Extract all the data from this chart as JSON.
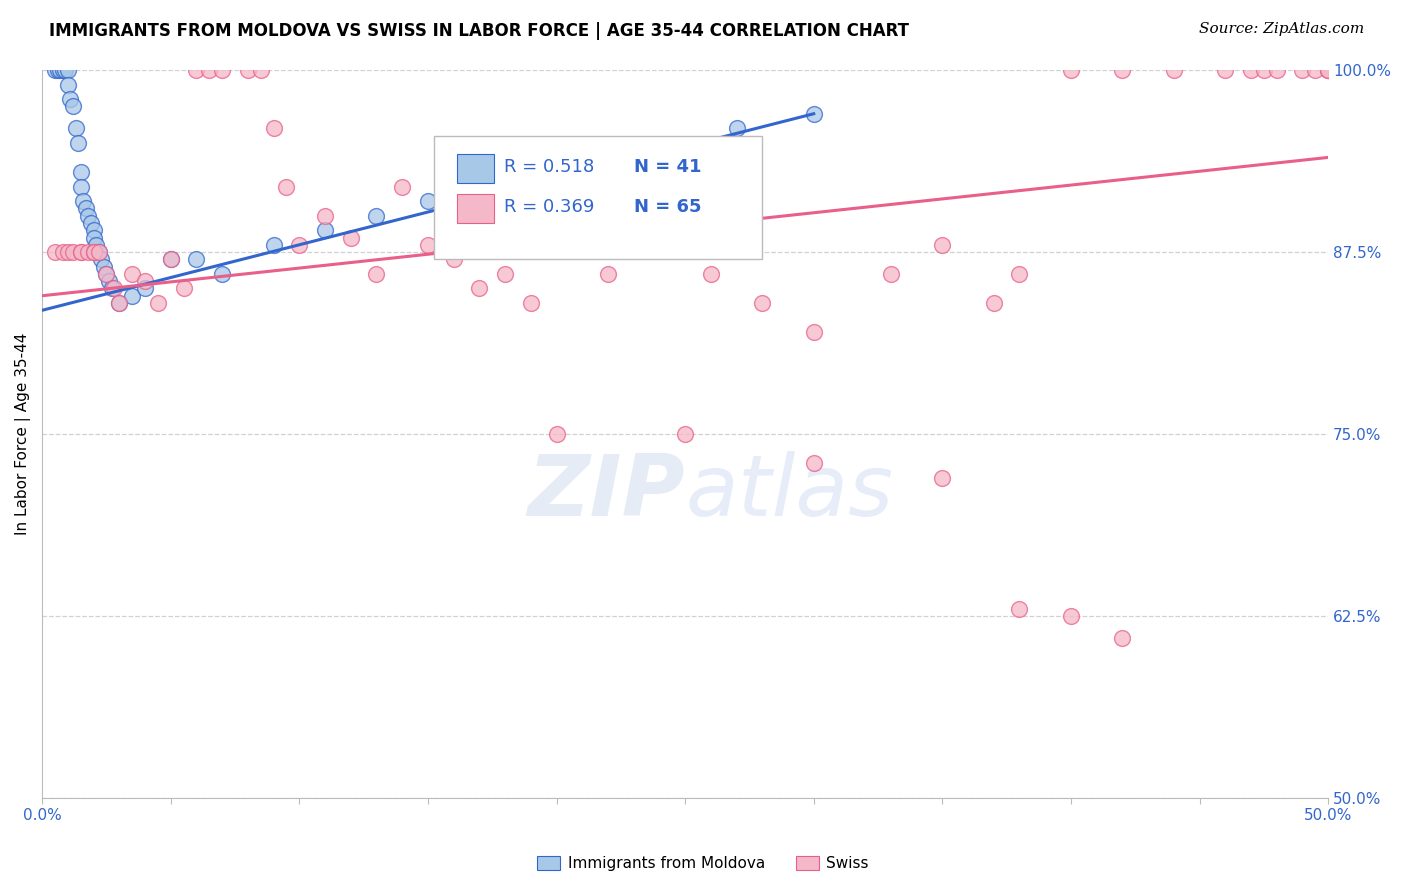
{
  "title": "IMMIGRANTS FROM MOLDOVA VS SWISS IN LABOR FORCE | AGE 35-44 CORRELATION CHART",
  "source": "Source: ZipAtlas.com",
  "ylabel_label": "In Labor Force | Age 35-44",
  "legend_blue_label": "Immigrants from Moldova",
  "legend_pink_label": "Swiss",
  "legend_blue_r": "R = 0.518",
  "legend_blue_n": "N = 41",
  "legend_pink_r": "R = 0.369",
  "legend_pink_n": "N = 65",
  "watermark_zip": "ZIP",
  "watermark_atlas": "atlas",
  "blue_color": "#a8c8e8",
  "pink_color": "#f4b8c8",
  "blue_line_color": "#3366cc",
  "pink_line_color": "#e8608a",
  "xmin": 0.0,
  "xmax": 50.0,
  "ymin": 50.0,
  "ymax": 100.0,
  "blue_dots_x": [
    0.5,
    0.6,
    0.7,
    0.8,
    0.9,
    1.0,
    1.0,
    1.1,
    1.2,
    1.3,
    1.4,
    1.5,
    1.5,
    1.6,
    1.7,
    1.8,
    1.9,
    2.0,
    2.0,
    2.1,
    2.2,
    2.3,
    2.4,
    2.5,
    2.6,
    2.7,
    3.0,
    3.5,
    4.0,
    5.0,
    6.0,
    7.0,
    9.0,
    11.0,
    13.0,
    15.0,
    17.0,
    20.0,
    23.0,
    27.0,
    30.0
  ],
  "blue_dots_y": [
    100.0,
    100.0,
    100.0,
    100.0,
    100.0,
    100.0,
    99.0,
    98.0,
    97.5,
    96.0,
    95.0,
    93.0,
    92.0,
    91.0,
    90.5,
    90.0,
    89.5,
    89.0,
    88.5,
    88.0,
    87.5,
    87.0,
    86.5,
    86.0,
    85.5,
    85.0,
    84.0,
    84.5,
    85.0,
    87.0,
    87.0,
    86.0,
    88.0,
    89.0,
    90.0,
    91.0,
    92.0,
    93.0,
    94.5,
    96.0,
    97.0
  ],
  "pink_dots_x": [
    0.5,
    0.8,
    1.0,
    1.2,
    1.5,
    1.5,
    1.8,
    2.0,
    2.0,
    2.2,
    2.5,
    2.8,
    3.0,
    3.5,
    4.0,
    4.5,
    5.0,
    5.5,
    6.0,
    6.5,
    7.0,
    8.0,
    8.5,
    9.0,
    9.5,
    10.0,
    11.0,
    12.0,
    13.0,
    14.0,
    15.0,
    16.0,
    17.0,
    18.0,
    19.0,
    20.0,
    22.0,
    24.0,
    25.0,
    26.0,
    28.0,
    30.0,
    33.0,
    35.0,
    37.0,
    38.0,
    40.0,
    42.0,
    44.0,
    46.0,
    47.0,
    47.5,
    48.0,
    49.0,
    49.5,
    50.0,
    50.0,
    50.0,
    20.0,
    25.0,
    30.0,
    35.0,
    40.0,
    38.0,
    42.0
  ],
  "pink_dots_y": [
    87.5,
    87.5,
    87.5,
    87.5,
    87.5,
    87.5,
    87.5,
    87.5,
    87.5,
    87.5,
    86.0,
    85.0,
    84.0,
    86.0,
    85.5,
    84.0,
    87.0,
    85.0,
    100.0,
    100.0,
    100.0,
    100.0,
    100.0,
    96.0,
    92.0,
    88.0,
    90.0,
    88.5,
    86.0,
    92.0,
    88.0,
    87.0,
    85.0,
    86.0,
    84.0,
    88.0,
    86.0,
    90.0,
    88.0,
    86.0,
    84.0,
    82.0,
    86.0,
    88.0,
    84.0,
    86.0,
    100.0,
    100.0,
    100.0,
    100.0,
    100.0,
    100.0,
    100.0,
    100.0,
    100.0,
    100.0,
    100.0,
    100.0,
    75.0,
    75.0,
    73.0,
    72.0,
    62.5,
    63.0,
    61.0
  ],
  "grid_color": "#cccccc",
  "background_color": "#ffffff",
  "title_fontsize": 12,
  "axis_fontsize": 11,
  "legend_fontsize": 13,
  "source_fontsize": 11,
  "blue_trend_x0": 0.0,
  "blue_trend_y0": 83.5,
  "blue_trend_x1": 30.0,
  "blue_trend_y1": 97.0,
  "pink_trend_x0": 0.0,
  "pink_trend_y0": 84.5,
  "pink_trend_x1": 50.0,
  "pink_trend_y1": 94.0
}
